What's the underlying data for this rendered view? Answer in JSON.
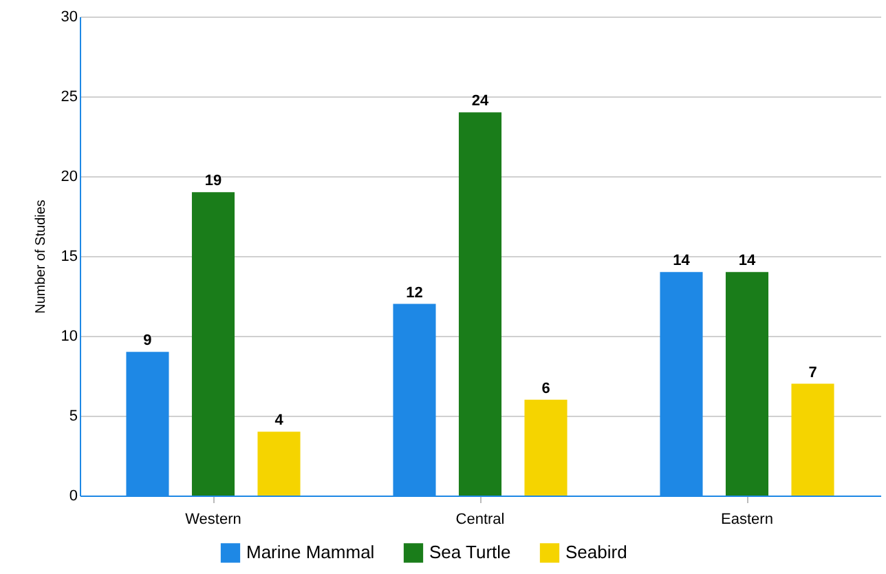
{
  "chart_data": {
    "type": "bar",
    "ylabel": "Number of Studies",
    "categories": [
      "Western",
      "Central",
      "Eastern"
    ],
    "series": [
      {
        "name": "Marine Mammal",
        "color": "#1e88e5",
        "values": [
          9,
          12,
          14
        ]
      },
      {
        "name": "Sea Turtle",
        "color": "#1a7d1a",
        "values": [
          19,
          24,
          14
        ]
      },
      {
        "name": "Seabird",
        "color": "#f5d400",
        "values": [
          4,
          6,
          7
        ]
      }
    ],
    "ylim": [
      0,
      30
    ],
    "yticks": [
      0,
      5,
      10,
      15,
      20,
      25,
      30
    ],
    "grid": "y",
    "legend": "bottom",
    "data_labels": true
  }
}
